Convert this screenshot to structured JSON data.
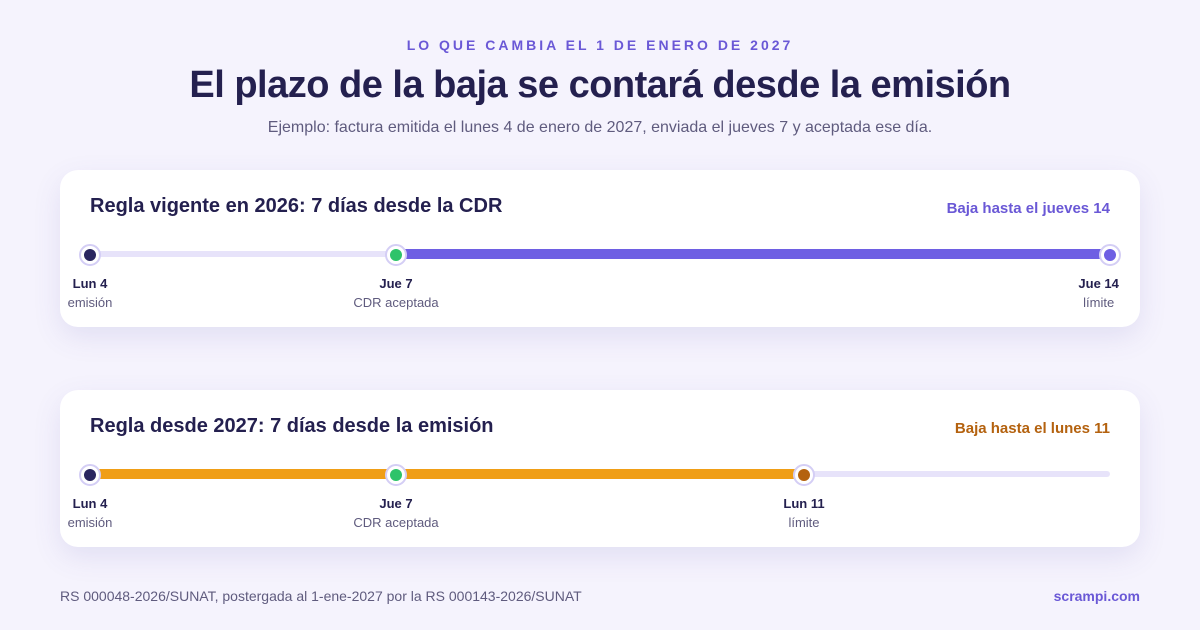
{
  "header": {
    "eyebrow": "LO QUE CAMBIA EL 1 DE ENERO DE 2027",
    "title": "El plazo de la baja se contará desde la emisión",
    "subtitle": "Ejemplo: factura emitida el lunes 4 de enero de 2027, enviada el jueves 7 y aceptada ese día."
  },
  "cards": [
    {
      "title": "Regla vigente en 2026: 7 días desde la CDR",
      "deadline": "Baja hasta el jueves 14",
      "accent_color": "#6e5fe3",
      "points": [
        {
          "day": "Lun 4",
          "desc": "emisión",
          "color": "#2a2660"
        },
        {
          "day": "Jue 7",
          "desc": "CDR aceptada",
          "color": "#2ec36a"
        },
        {
          "day": "Jue 14",
          "desc": "límite",
          "color": "#6e5fe3"
        }
      ]
    },
    {
      "title": "Regla desde 2027: 7 días desde la emisión",
      "deadline": "Baja hasta el lunes 11",
      "accent_color": "#f09e16",
      "points": [
        {
          "day": "Lun 4",
          "desc": "emisión",
          "color": "#2a2660"
        },
        {
          "day": "Jue 7",
          "desc": "CDR aceptada",
          "color": "#2ec36a"
        },
        {
          "day": "Lun 11",
          "desc": "límite",
          "color": "#b4620f"
        }
      ]
    }
  ],
  "footer": {
    "note": "RS 000048-2026/SUNAT, postergada al 1-ene-2027 por la RS 000143-2026/SUNAT",
    "brand": "scrampi.com"
  }
}
